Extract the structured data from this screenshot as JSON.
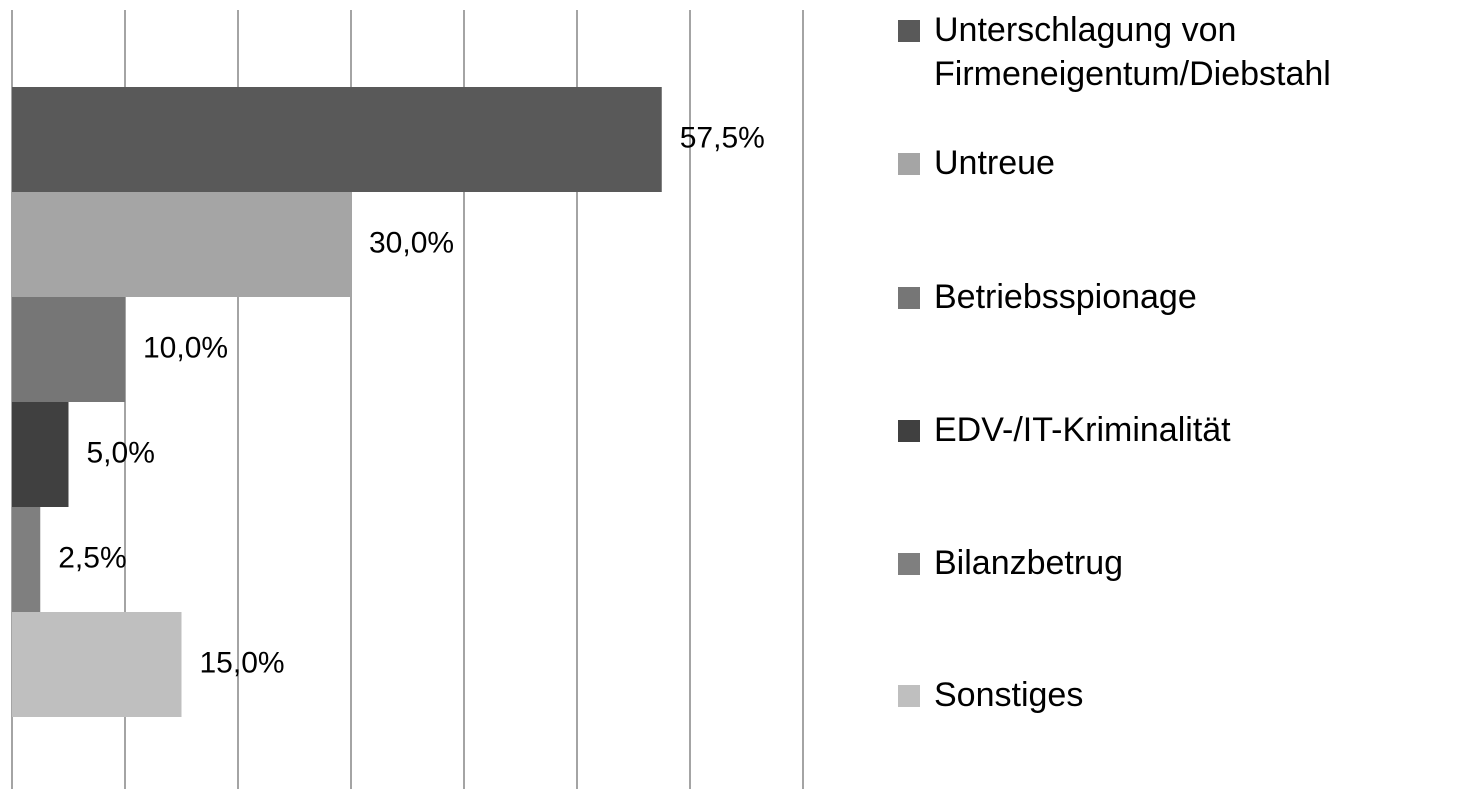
{
  "chart_data": {
    "type": "bar",
    "orientation": "horizontal",
    "categories": [
      "Unterschlagung von Firmeneigentum/Diebstahl",
      "Untreue",
      "Betriebsspionage",
      "EDV-/IT-Kriminalität",
      "Bilanzbetrug",
      "Sonstiges"
    ],
    "values": [
      57.5,
      30.0,
      10.0,
      5.0,
      2.5,
      15.0
    ],
    "value_labels": [
      "57,5%",
      "30,0%",
      "10,0%",
      "5,0%",
      "2,5%",
      "15,0%"
    ],
    "colors": [
      "#595959",
      "#a5a5a5",
      "#767676",
      "#404040",
      "#7f7f7f",
      "#bfbfbf"
    ],
    "xlim": [
      0,
      70
    ],
    "xticks": [
      0,
      10,
      20,
      30,
      40,
      50,
      60,
      70
    ],
    "grid": true,
    "legend": "right"
  }
}
